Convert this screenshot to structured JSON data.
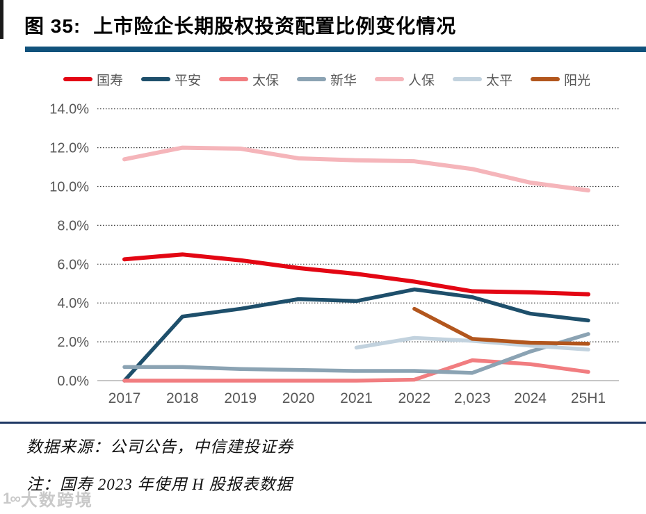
{
  "header": {
    "figure_label": "图 35:",
    "title": "上市险企长期股权投资配置比例变化情况",
    "accent_bar_color": "#10527c"
  },
  "footer": {
    "source": "数据来源：公司公告，中信建投证券",
    "note": "注：国寿 2023 年使用 H 股报表数据",
    "divider_color": "#1f3864"
  },
  "watermark": {
    "logo": "1∞",
    "text": "大数跨境"
  },
  "chart_data": {
    "type": "line",
    "title": "",
    "xlabel": "",
    "ylabel": "",
    "categories": [
      "2017",
      "2018",
      "2019",
      "2020",
      "2021",
      "2022",
      "2,023",
      "2024",
      "25H1"
    ],
    "yticks": [
      0,
      2,
      4,
      6,
      8,
      10,
      12,
      14
    ],
    "ytick_labels": [
      "0.0%",
      "2.0%",
      "4.0%",
      "6.0%",
      "8.0%",
      "10.0%",
      "12.0%",
      "14.0%"
    ],
    "ylim": [
      0,
      14
    ],
    "grid": "horizontal-dotted",
    "legend_position": "top",
    "axis_text_color": "#595959",
    "series": [
      {
        "name": "国寿",
        "color": "#e30613",
        "width": 6,
        "values": [
          6.25,
          6.5,
          6.2,
          5.8,
          5.5,
          5.1,
          4.6,
          4.55,
          4.45
        ]
      },
      {
        "name": "平安",
        "color": "#1e4f6b",
        "width": 5.5,
        "values": [
          0.0,
          3.3,
          3.7,
          4.2,
          4.1,
          4.7,
          4.3,
          3.45,
          3.1
        ]
      },
      {
        "name": "太保",
        "color": "#f17d80",
        "width": 5.5,
        "values": [
          0.0,
          0.0,
          0.0,
          0.0,
          0.0,
          0.05,
          1.05,
          0.85,
          0.45
        ]
      },
      {
        "name": "新华",
        "color": "#8ba3b3",
        "width": 5.5,
        "values": [
          0.7,
          0.7,
          0.6,
          0.55,
          0.5,
          0.5,
          0.4,
          1.5,
          2.4
        ]
      },
      {
        "name": "人保",
        "color": "#f5b5ba",
        "width": 6,
        "values": [
          11.4,
          12.0,
          11.95,
          11.45,
          11.35,
          11.3,
          10.9,
          10.2,
          9.8
        ]
      },
      {
        "name": "太平",
        "color": "#c2d2de",
        "width": 5.5,
        "values": [
          null,
          null,
          null,
          null,
          1.7,
          2.2,
          2.05,
          1.8,
          1.6
        ]
      },
      {
        "name": "阳光",
        "color": "#b2561d",
        "width": 5.5,
        "values": [
          null,
          null,
          null,
          null,
          null,
          3.7,
          2.15,
          1.95,
          1.9
        ]
      }
    ]
  }
}
